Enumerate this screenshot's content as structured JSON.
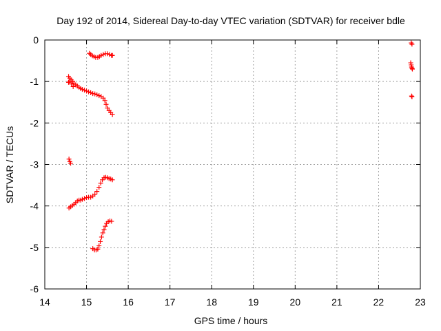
{
  "chart_data": {
    "type": "scatter",
    "title": "Day 192 of 2014, Sidereal Day-to-day VTEC variation (SDTVAR) for receiver bdle",
    "xlabel": "GPS time / hours",
    "ylabel": "SDTVAR / TECUs",
    "xlim": [
      14,
      23
    ],
    "ylim": [
      -6,
      0
    ],
    "xticks": [
      14,
      15,
      16,
      17,
      18,
      19,
      20,
      21,
      22,
      23
    ],
    "yticks": [
      0,
      -1,
      -2,
      -3,
      -4,
      -5,
      -6
    ],
    "grid": true,
    "marker": "plus",
    "color": "#ff0000",
    "series": [
      {
        "segments": [
          [
            [
              14.57,
              -0.88
            ],
            [
              14.6,
              -0.92
            ],
            [
              14.63,
              -0.96
            ],
            [
              14.67,
              -1.0
            ],
            [
              14.7,
              -1.04
            ],
            [
              14.74,
              -1.08
            ],
            [
              14.78,
              -1.11
            ],
            [
              14.82,
              -1.14
            ],
            [
              14.86,
              -1.17
            ],
            [
              14.9,
              -1.19
            ],
            [
              14.95,
              -1.21
            ],
            [
              15.0,
              -1.23
            ],
            [
              15.05,
              -1.25
            ],
            [
              15.1,
              -1.27
            ],
            [
              15.15,
              -1.29
            ],
            [
              15.2,
              -1.3
            ],
            [
              15.25,
              -1.32
            ],
            [
              15.3,
              -1.34
            ],
            [
              15.35,
              -1.36
            ],
            [
              15.4,
              -1.4
            ],
            [
              15.44,
              -1.46
            ],
            [
              15.47,
              -1.55
            ],
            [
              15.5,
              -1.64
            ],
            [
              15.54,
              -1.7
            ],
            [
              15.58,
              -1.75
            ],
            [
              15.62,
              -1.8
            ],
            [
              14.57,
              -1.02
            ],
            [
              14.6,
              -1.0
            ],
            [
              14.64,
              -1.06
            ],
            [
              14.68,
              -1.12
            ]
          ],
          [
            [
              15.07,
              -0.32
            ],
            [
              15.1,
              -0.35
            ],
            [
              15.14,
              -0.38
            ],
            [
              15.18,
              -0.4
            ],
            [
              15.22,
              -0.42
            ],
            [
              15.27,
              -0.42
            ],
            [
              15.31,
              -0.4
            ],
            [
              15.35,
              -0.37
            ],
            [
              15.4,
              -0.35
            ],
            [
              15.45,
              -0.33
            ],
            [
              15.5,
              -0.33
            ],
            [
              15.55,
              -0.35
            ],
            [
              15.6,
              -0.37
            ],
            [
              15.62,
              -0.37
            ]
          ],
          [
            [
              14.58,
              -2.87
            ],
            [
              14.6,
              -2.93
            ],
            [
              14.62,
              -2.97
            ]
          ],
          [
            [
              14.58,
              -4.05
            ],
            [
              14.62,
              -4.02
            ],
            [
              14.66,
              -3.99
            ],
            [
              14.7,
              -3.96
            ],
            [
              14.74,
              -3.92
            ],
            [
              14.78,
              -3.88
            ],
            [
              14.82,
              -3.86
            ],
            [
              14.86,
              -3.86
            ],
            [
              14.9,
              -3.84
            ],
            [
              14.95,
              -3.82
            ],
            [
              15.0,
              -3.8
            ],
            [
              15.05,
              -3.79
            ],
            [
              15.1,
              -3.79
            ],
            [
              15.15,
              -3.76
            ],
            [
              15.2,
              -3.72
            ],
            [
              15.25,
              -3.65
            ],
            [
              15.3,
              -3.55
            ],
            [
              15.34,
              -3.45
            ],
            [
              15.38,
              -3.37
            ],
            [
              15.42,
              -3.32
            ],
            [
              15.46,
              -3.31
            ],
            [
              15.5,
              -3.32
            ],
            [
              15.54,
              -3.34
            ],
            [
              15.58,
              -3.35
            ],
            [
              15.62,
              -3.37
            ]
          ],
          [
            [
              15.15,
              -5.03
            ],
            [
              15.19,
              -5.06
            ],
            [
              15.23,
              -5.06
            ],
            [
              15.27,
              -5.04
            ],
            [
              15.3,
              -4.96
            ],
            [
              15.33,
              -4.86
            ],
            [
              15.36,
              -4.75
            ],
            [
              15.39,
              -4.65
            ],
            [
              15.42,
              -4.57
            ],
            [
              15.45,
              -4.49
            ],
            [
              15.48,
              -4.42
            ],
            [
              15.52,
              -4.38
            ],
            [
              15.56,
              -4.36
            ],
            [
              15.6,
              -4.37
            ]
          ],
          [
            [
              22.78,
              -0.07
            ],
            [
              22.8,
              -0.1
            ],
            [
              22.77,
              -0.55
            ],
            [
              22.78,
              -0.6
            ],
            [
              22.79,
              -0.65
            ],
            [
              22.8,
              -0.68
            ],
            [
              22.81,
              -0.7
            ],
            [
              22.79,
              -1.35
            ],
            [
              22.8,
              -1.37
            ]
          ]
        ]
      }
    ]
  }
}
